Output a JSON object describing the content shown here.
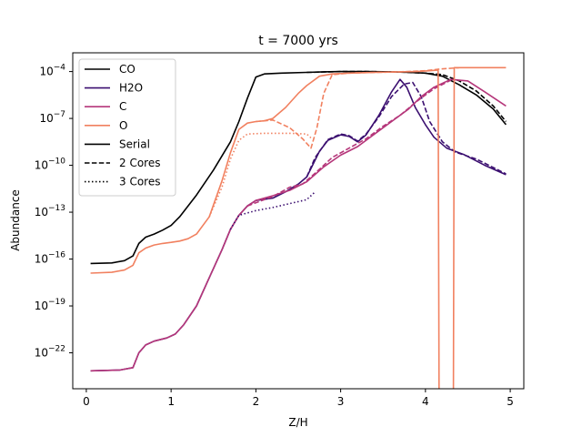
{
  "chart_data": {
    "type": "line",
    "title": "t = 7000 yrs",
    "xlabel": "Z/H",
    "ylabel": "Abundance",
    "xlim": [
      -0.16,
      5.16
    ],
    "ylim_log10": [
      -24.3,
      -2.8
    ],
    "yscale": "log",
    "grid": false,
    "legend_position": "top-left",
    "x_ticks": [
      "0",
      "1",
      "2",
      "3",
      "4",
      "5"
    ],
    "x_tick_values": [
      0,
      1,
      2,
      3,
      4,
      5
    ],
    "y_tick_exponents": [
      -22,
      -19,
      -16,
      -13,
      -10,
      -7,
      -4
    ],
    "y_tick_labels": [
      "10",
      "10",
      "10",
      "10",
      "10",
      "10",
      "10"
    ],
    "y_tick_superscripts": [
      "−22",
      "−19",
      "−16",
      "−13",
      "−10",
      "−7",
      "−4"
    ],
    "legend": [
      {
        "label": "CO",
        "color": "#000000",
        "dash": "solid"
      },
      {
        "label": "H2O",
        "color": "#3b0f70",
        "dash": "solid"
      },
      {
        "label": "C",
        "color": "#b5367a",
        "dash": "solid"
      },
      {
        "label": "O",
        "color": "#f1805f",
        "dash": "solid"
      },
      {
        "label": "Serial",
        "color": "#000000",
        "dash": "solid"
      },
      {
        "label": "2 Cores",
        "color": "#000000",
        "dash": "dashed"
      },
      {
        "label": "3 Cores",
        "color": "#000000",
        "dash": "dotted"
      }
    ],
    "series": [
      {
        "species": "CO",
        "run": "Serial",
        "color": "#000000",
        "dash": "solid",
        "points": [
          [
            0.05,
            -16.28
          ],
          [
            0.3,
            -16.25
          ],
          [
            0.45,
            -16.1
          ],
          [
            0.55,
            -15.8
          ],
          [
            0.62,
            -15.0
          ],
          [
            0.7,
            -14.6
          ],
          [
            0.8,
            -14.4
          ],
          [
            0.9,
            -14.15
          ],
          [
            1.0,
            -13.85
          ],
          [
            1.1,
            -13.3
          ],
          [
            1.3,
            -11.9
          ],
          [
            1.5,
            -10.3
          ],
          [
            1.7,
            -8.5
          ],
          [
            1.8,
            -7.2
          ],
          [
            1.9,
            -5.7
          ],
          [
            2.0,
            -4.35
          ],
          [
            2.1,
            -4.15
          ],
          [
            2.3,
            -4.1
          ],
          [
            2.6,
            -4.05
          ],
          [
            2.8,
            -4.02
          ],
          [
            3.0,
            -4.0
          ],
          [
            3.3,
            -4.0
          ],
          [
            3.6,
            -4.02
          ],
          [
            3.8,
            -4.05
          ],
          [
            4.0,
            -4.1
          ],
          [
            4.2,
            -4.3
          ],
          [
            4.4,
            -4.85
          ],
          [
            4.6,
            -5.5
          ],
          [
            4.8,
            -6.4
          ],
          [
            4.95,
            -7.4
          ]
        ]
      },
      {
        "species": "CO",
        "run": "2 Cores",
        "color": "#000000",
        "dash": "dashed",
        "points": [
          [
            2.6,
            -4.05
          ],
          [
            3.0,
            -4.0
          ],
          [
            3.3,
            -4.0
          ],
          [
            3.6,
            -4.02
          ],
          [
            3.8,
            -4.05
          ],
          [
            4.0,
            -4.1
          ],
          [
            4.2,
            -4.2
          ],
          [
            4.4,
            -4.6
          ],
          [
            4.6,
            -5.25
          ],
          [
            4.8,
            -6.2
          ],
          [
            4.95,
            -7.2
          ]
        ]
      },
      {
        "species": "H2O",
        "run": "Serial",
        "color": "#3b0f70",
        "dash": "solid",
        "points": [
          [
            0.05,
            -23.15
          ],
          [
            0.4,
            -23.1
          ],
          [
            0.55,
            -22.95
          ],
          [
            0.62,
            -22.0
          ],
          [
            0.7,
            -21.5
          ],
          [
            0.8,
            -21.25
          ],
          [
            0.95,
            -21.05
          ],
          [
            1.05,
            -20.8
          ],
          [
            1.15,
            -20.2
          ],
          [
            1.3,
            -19.0
          ],
          [
            1.45,
            -17.2
          ],
          [
            1.6,
            -15.4
          ],
          [
            1.7,
            -14.1
          ],
          [
            1.8,
            -13.2
          ],
          [
            1.9,
            -12.6
          ],
          [
            2.0,
            -12.25
          ],
          [
            2.2,
            -12.1
          ],
          [
            2.35,
            -11.7
          ],
          [
            2.5,
            -11.2
          ],
          [
            2.6,
            -10.75
          ],
          [
            2.65,
            -10.2
          ],
          [
            2.75,
            -9.1
          ],
          [
            2.85,
            -8.4
          ],
          [
            3.0,
            -8.05
          ],
          [
            3.1,
            -8.15
          ],
          [
            3.2,
            -8.5
          ],
          [
            3.3,
            -8.05
          ],
          [
            3.45,
            -6.8
          ],
          [
            3.6,
            -5.3
          ],
          [
            3.7,
            -4.5
          ],
          [
            3.78,
            -5.0
          ],
          [
            3.88,
            -6.3
          ],
          [
            4.0,
            -7.4
          ],
          [
            4.1,
            -8.2
          ],
          [
            4.25,
            -8.9
          ],
          [
            4.45,
            -9.3
          ],
          [
            4.7,
            -10.0
          ],
          [
            4.95,
            -10.6
          ]
        ]
      },
      {
        "species": "H2O",
        "run": "2 Cores",
        "color": "#3b0f70",
        "dash": "dashed",
        "points": [
          [
            2.6,
            -10.75
          ],
          [
            2.7,
            -9.5
          ],
          [
            2.85,
            -8.35
          ],
          [
            3.0,
            -8.0
          ],
          [
            3.1,
            -8.1
          ],
          [
            3.2,
            -8.45
          ],
          [
            3.3,
            -8.0
          ],
          [
            3.45,
            -6.9
          ],
          [
            3.6,
            -5.6
          ],
          [
            3.75,
            -4.8
          ],
          [
            3.85,
            -4.7
          ],
          [
            3.95,
            -5.6
          ],
          [
            4.05,
            -7.2
          ],
          [
            4.2,
            -8.5
          ],
          [
            4.35,
            -9.15
          ],
          [
            4.6,
            -9.6
          ],
          [
            4.95,
            -10.55
          ]
        ]
      },
      {
        "species": "C",
        "run": "Serial",
        "color": "#b5367a",
        "dash": "solid",
        "points": [
          [
            0.05,
            -23.15
          ],
          [
            0.4,
            -23.1
          ],
          [
            0.55,
            -22.95
          ],
          [
            0.62,
            -22.0
          ],
          [
            0.7,
            -21.5
          ],
          [
            0.8,
            -21.25
          ],
          [
            0.95,
            -21.05
          ],
          [
            1.05,
            -20.8
          ],
          [
            1.15,
            -20.2
          ],
          [
            1.3,
            -19.0
          ],
          [
            1.45,
            -17.2
          ],
          [
            1.6,
            -15.4
          ],
          [
            1.7,
            -14.1
          ],
          [
            1.8,
            -13.2
          ],
          [
            1.9,
            -12.6
          ],
          [
            2.0,
            -12.25
          ],
          [
            2.2,
            -11.95
          ],
          [
            2.4,
            -11.6
          ],
          [
            2.6,
            -11.05
          ],
          [
            2.8,
            -10.1
          ],
          [
            3.0,
            -9.35
          ],
          [
            3.2,
            -8.8
          ],
          [
            3.4,
            -8.0
          ],
          [
            3.6,
            -7.2
          ],
          [
            3.8,
            -6.4
          ],
          [
            3.95,
            -5.6
          ],
          [
            4.1,
            -5.0
          ],
          [
            4.3,
            -4.5
          ],
          [
            4.5,
            -4.6
          ],
          [
            4.7,
            -5.3
          ],
          [
            4.95,
            -6.2
          ]
        ]
      },
      {
        "species": "C",
        "run": "2 Cores",
        "color": "#b5367a",
        "dash": "dashed",
        "points": [
          [
            1.9,
            -12.6
          ],
          [
            2.05,
            -12.3
          ],
          [
            2.2,
            -12.0
          ],
          [
            2.4,
            -11.4
          ],
          [
            2.55,
            -11.2
          ],
          [
            2.7,
            -10.5
          ],
          [
            2.9,
            -9.5
          ],
          [
            3.1,
            -8.9
          ],
          [
            3.3,
            -8.3
          ],
          [
            3.5,
            -7.5
          ],
          [
            3.7,
            -6.8
          ],
          [
            3.9,
            -5.9
          ],
          [
            4.1,
            -5.1
          ],
          [
            4.3,
            -4.55
          ]
        ]
      },
      {
        "species": "C",
        "run": "3 Cores",
        "color": "#3b0f70",
        "dash": "dotted",
        "points": [
          [
            1.7,
            -14.1
          ],
          [
            1.8,
            -13.2
          ],
          [
            2.0,
            -12.9
          ],
          [
            2.2,
            -12.7
          ],
          [
            2.4,
            -12.45
          ],
          [
            2.6,
            -12.2
          ],
          [
            2.7,
            -11.7
          ]
        ]
      },
      {
        "species": "O",
        "run": "Serial",
        "color": "#f1805f",
        "dash": "solid",
        "points": [
          [
            0.05,
            -16.9
          ],
          [
            0.3,
            -16.85
          ],
          [
            0.45,
            -16.7
          ],
          [
            0.55,
            -16.4
          ],
          [
            0.62,
            -15.6
          ],
          [
            0.7,
            -15.3
          ],
          [
            0.8,
            -15.1
          ],
          [
            0.9,
            -15.0
          ],
          [
            1.0,
            -14.93
          ],
          [
            1.1,
            -14.85
          ],
          [
            1.2,
            -14.7
          ],
          [
            1.3,
            -14.4
          ],
          [
            1.45,
            -13.3
          ],
          [
            1.6,
            -11.0
          ],
          [
            1.7,
            -9.2
          ],
          [
            1.8,
            -7.7
          ],
          [
            1.9,
            -7.3
          ],
          [
            2.0,
            -7.2
          ],
          [
            2.1,
            -7.15
          ],
          [
            2.2,
            -7.0
          ],
          [
            2.35,
            -6.3
          ],
          [
            2.5,
            -5.4
          ],
          [
            2.6,
            -4.9
          ],
          [
            2.75,
            -4.3
          ],
          [
            2.9,
            -4.15
          ],
          [
            3.1,
            -4.1
          ],
          [
            3.4,
            -4.05
          ],
          [
            3.7,
            -4.02
          ],
          [
            3.9,
            -4.0
          ],
          [
            4.05,
            -3.95
          ],
          [
            4.15,
            -3.9
          ],
          [
            4.16,
            -24.3
          ]
        ]
      },
      {
        "species": "O",
        "run": "Serial tail",
        "color": "#f1805f",
        "dash": "solid",
        "points": [
          [
            4.33,
            -24.3
          ],
          [
            4.34,
            -3.75
          ],
          [
            4.5,
            -3.75
          ],
          [
            4.7,
            -3.75
          ],
          [
            4.95,
            -3.75
          ]
        ]
      },
      {
        "species": "O",
        "run": "2 Cores",
        "color": "#f1805f",
        "dash": "dashed",
        "points": [
          [
            2.0,
            -7.2
          ],
          [
            2.2,
            -7.1
          ],
          [
            2.4,
            -7.6
          ],
          [
            2.55,
            -8.3
          ],
          [
            2.65,
            -8.9
          ],
          [
            2.72,
            -7.6
          ],
          [
            2.8,
            -5.4
          ],
          [
            2.9,
            -4.2
          ],
          [
            3.1,
            -4.1
          ],
          [
            3.4,
            -4.05
          ],
          [
            3.7,
            -4.02
          ],
          [
            4.0,
            -3.95
          ],
          [
            4.15,
            -3.85
          ],
          [
            4.4,
            -3.75
          ]
        ]
      },
      {
        "species": "O",
        "run": "3 Cores",
        "color": "#f1805f",
        "dash": "dotted",
        "points": [
          [
            1.45,
            -13.3
          ],
          [
            1.6,
            -11.4
          ],
          [
            1.7,
            -9.6
          ],
          [
            1.8,
            -8.4
          ],
          [
            1.9,
            -8.0
          ],
          [
            2.1,
            -7.95
          ],
          [
            2.4,
            -7.95
          ],
          [
            2.6,
            -8.0
          ],
          [
            2.65,
            -8.25
          ]
        ]
      }
    ]
  }
}
